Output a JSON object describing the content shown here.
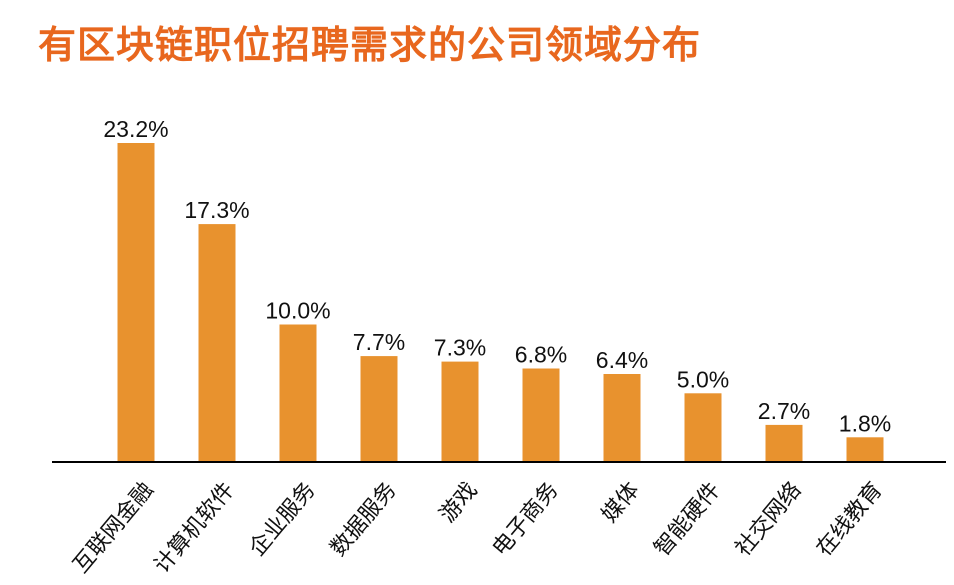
{
  "chart_data": {
    "type": "bar",
    "title": "有区块链职位招聘需求的公司领域分布",
    "xlabel": "",
    "ylabel": "",
    "categories": [
      "互联网金融",
      "计算机软件",
      "企业服务",
      "数据服务",
      "游戏",
      "电子商务",
      "媒体",
      "智能硬件",
      "社交网络",
      "在线教育"
    ],
    "values": [
      23.2,
      17.3,
      10.0,
      7.7,
      7.3,
      6.8,
      6.4,
      5.0,
      2.7,
      1.8
    ],
    "value_labels": [
      "23.2%",
      "17.3%",
      "10.0%",
      "7.7%",
      "7.3%",
      "6.8%",
      "6.4%",
      "5.0%",
      "2.7%",
      "1.8%"
    ],
    "ylim": [
      0,
      23.2
    ],
    "grid": false,
    "legend": "none",
    "bar_color": "#E8922E",
    "title_color": "#E8671E"
  }
}
